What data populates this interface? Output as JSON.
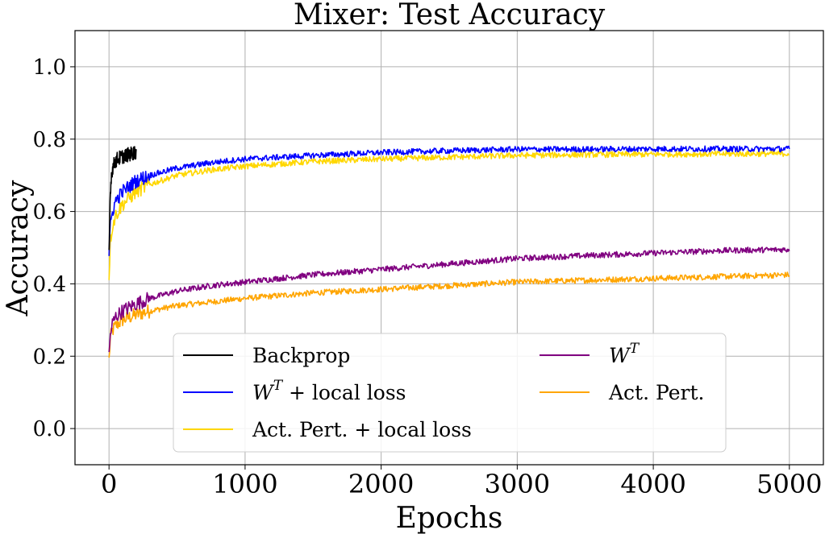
{
  "chart_data": {
    "type": "line",
    "title": "Mixer: Test Accuracy",
    "xlabel": "Epochs",
    "ylabel": "Accuracy",
    "xlim": [
      -250,
      5250
    ],
    "ylim": [
      -0.1,
      1.1
    ],
    "xticks": [
      0,
      1000,
      2000,
      3000,
      4000,
      5000
    ],
    "yticks": [
      0.0,
      0.2,
      0.4,
      0.6,
      0.8,
      1.0
    ],
    "xtick_labels": [
      "0",
      "1000",
      "2000",
      "3000",
      "4000",
      "5000"
    ],
    "ytick_labels": [
      "0.0",
      "0.2",
      "0.4",
      "0.6",
      "0.8",
      "1.0"
    ],
    "grid": true,
    "legend_position": "lower-center",
    "series": [
      {
        "name": "Backprop",
        "color": "#000000",
        "x": [
          0,
          10,
          20,
          40,
          60,
          100,
          150,
          200
        ],
        "y": [
          0.48,
          0.66,
          0.71,
          0.735,
          0.745,
          0.752,
          0.758,
          0.765
        ]
      },
      {
        "name": "W^T + local loss",
        "color": "#0000ff",
        "x": [
          0,
          10,
          25,
          50,
          100,
          200,
          300,
          500,
          750,
          1000,
          1500,
          2000,
          2500,
          3000,
          3500,
          4000,
          4500,
          5000
        ],
        "y": [
          0.47,
          0.56,
          0.6,
          0.63,
          0.655,
          0.685,
          0.7,
          0.72,
          0.735,
          0.745,
          0.755,
          0.763,
          0.768,
          0.772,
          0.772,
          0.773,
          0.773,
          0.773
        ]
      },
      {
        "name": "Act. Pert. + local loss",
        "color": "#ffd700",
        "x": [
          0,
          10,
          25,
          50,
          100,
          200,
          300,
          500,
          750,
          1000,
          1500,
          2000,
          2500,
          3000,
          3500,
          4000,
          4500,
          5000
        ],
        "y": [
          0.42,
          0.52,
          0.56,
          0.59,
          0.62,
          0.655,
          0.675,
          0.7,
          0.715,
          0.725,
          0.738,
          0.745,
          0.75,
          0.755,
          0.757,
          0.758,
          0.759,
          0.76
        ]
      },
      {
        "name": "W^T",
        "color": "#800080",
        "x": [
          0,
          10,
          25,
          50,
          100,
          200,
          300,
          500,
          750,
          1000,
          1500,
          2000,
          2500,
          3000,
          3500,
          4000,
          4500,
          5000
        ],
        "y": [
          0.2,
          0.26,
          0.29,
          0.31,
          0.325,
          0.345,
          0.36,
          0.38,
          0.395,
          0.405,
          0.425,
          0.44,
          0.455,
          0.47,
          0.478,
          0.485,
          0.492,
          0.495
        ]
      },
      {
        "name": "Act. Pert.",
        "color": "#ffa500",
        "x": [
          0,
          10,
          25,
          50,
          100,
          200,
          300,
          500,
          750,
          1000,
          1500,
          2000,
          2500,
          3000,
          3500,
          4000,
          4500,
          5000
        ],
        "y": [
          0.19,
          0.25,
          0.27,
          0.285,
          0.3,
          0.315,
          0.325,
          0.34,
          0.35,
          0.36,
          0.375,
          0.385,
          0.395,
          0.405,
          0.41,
          0.415,
          0.42,
          0.425
        ]
      }
    ],
    "legend": {
      "left_column": [
        {
          "base": "Backprop",
          "sup": "",
          "suffix": "",
          "color": "#000000"
        },
        {
          "base": "W",
          "sup": "T",
          "suffix": " + local loss",
          "color": "#0000ff"
        },
        {
          "base": "Act. Pert. + local loss",
          "sup": "",
          "suffix": "",
          "color": "#ffd700"
        }
      ],
      "right_column": [
        {
          "base": "W",
          "sup": "T",
          "suffix": "",
          "color": "#800080"
        },
        {
          "base": "Act. Pert.",
          "sup": "",
          "suffix": "",
          "color": "#ffa500"
        }
      ]
    }
  }
}
